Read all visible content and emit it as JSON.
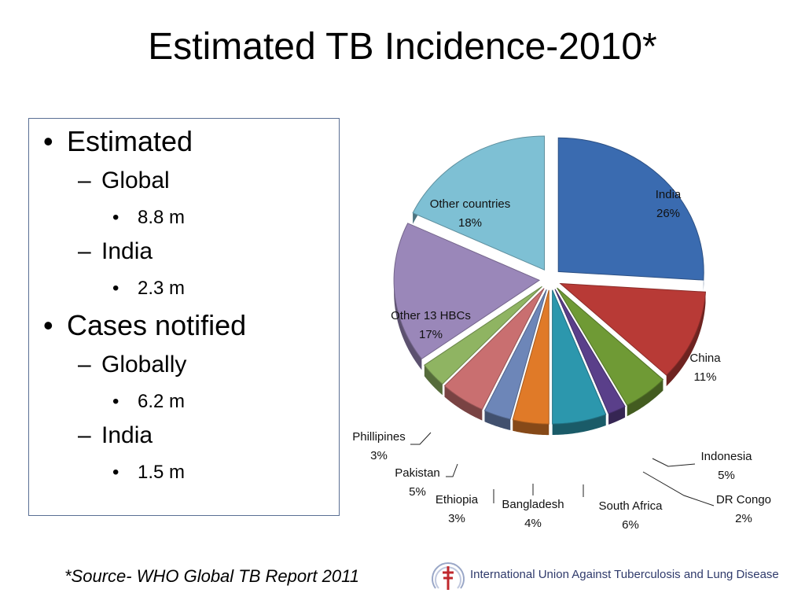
{
  "title": "Estimated TB Incidence-2010*",
  "bullets": [
    {
      "text": "Estimated",
      "level": 1,
      "marker": "•"
    },
    {
      "text": "Global",
      "level": 2,
      "marker": "–"
    },
    {
      "text": "8.8 m",
      "level": 3,
      "marker": "•"
    },
    {
      "text": "India",
      "level": 2,
      "marker": "–"
    },
    {
      "text": "2.3 m",
      "level": 3,
      "marker": "•"
    },
    {
      "text": "Cases notified",
      "level": 1,
      "marker": "•"
    },
    {
      "text": "Globally",
      "level": 2,
      "marker": "–"
    },
    {
      "text": "6.2 m",
      "level": 3,
      "marker": "•"
    },
    {
      "text": "India",
      "level": 2,
      "marker": "–"
    },
    {
      "text": "1.5 m",
      "level": 3,
      "marker": "•"
    }
  ],
  "chart_data": {
    "type": "pie",
    "title": "",
    "exploded": true,
    "categories": [
      "India",
      "China",
      "Indonesia",
      "DR Congo",
      "South Africa",
      "Bangladesh",
      "Ethiopia",
      "Pakistan",
      "Phillipines",
      "Other 13 HBCs",
      "Other countries"
    ],
    "values": [
      26,
      11,
      5,
      2,
      6,
      4,
      3,
      5,
      3,
      17,
      18
    ],
    "labels": [
      "26%",
      "11%",
      "5%",
      "2%",
      "6%",
      "4%",
      "3%",
      "5%",
      "3%",
      "17%",
      "18%"
    ],
    "colors": [
      "#3a6bb0",
      "#b83a36",
      "#6f9a35",
      "#5a3f8a",
      "#2c97ad",
      "#e07a28",
      "#6d86b8",
      "#c96f70",
      "#8fb462",
      "#9a87b9",
      "#7ec0d4"
    ],
    "legend": "none",
    "data_labels": "category name and percentage"
  },
  "footer": {
    "source": "*Source- WHO Global TB Report 2011",
    "logo_text": "International Union Against Tuberculosis and Lung Disease",
    "logo_icon": "union-cross-icon"
  }
}
